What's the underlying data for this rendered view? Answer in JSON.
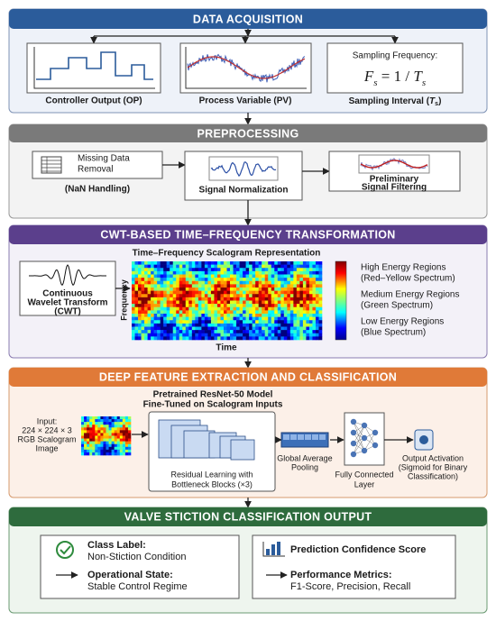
{
  "acquisition": {
    "title": "DATA ACQUISITION",
    "op_label": "Controller Output (OP)",
    "pv_label": "Process Variable (PV)",
    "sampling_frequency_label": "Sampling Frequency:",
    "formula": [
      "F",
      "s",
      " = 1 / ",
      "T",
      "s"
    ],
    "sampling_interval": [
      "Sampling Interval (",
      "T",
      "s",
      ")"
    ]
  },
  "preprocessing": {
    "title": "PREPROCESSING",
    "missing_data": [
      "Missing Data",
      "Removal"
    ],
    "nan_handling": "(NaN Handling)",
    "normalization": "Signal Normalization",
    "filtering": [
      "Preliminary",
      "Signal Filtering"
    ]
  },
  "cwt": {
    "title": "CWT-BASED TIME–FREQUENCY TRANSFORMATION",
    "wavelet": [
      "Continuous",
      "Wavelet Transform",
      "(CWT)"
    ],
    "scalogram_title": "Time–Frequency Scalogram Representation",
    "y_axis": "Frequency",
    "x_axis": "Time",
    "legend": [
      [
        "High Energy Regions",
        "(Red–Yellow Spectrum)"
      ],
      [
        "Medium Energy Regions",
        "(Green Spectrum)"
      ],
      [
        "Low Energy Regions",
        "(Blue Spectrum)"
      ]
    ]
  },
  "deep": {
    "title": "DEEP FEATURE EXTRACTION AND CLASSIFICATION",
    "input": [
      "Input:",
      "224 × 224 × 3",
      "RGB Scalogram",
      "Image"
    ],
    "model": [
      "Pretrained ResNet-50 Model",
      "Fine-Tuned on Scalogram Inputs"
    ],
    "residual": [
      "Residual Learning with",
      "Bottleneck Blocks (×3)"
    ],
    "pooling": [
      "Global Average",
      "Pooling"
    ],
    "fully_connected": [
      "Fully Connected",
      "Layer"
    ],
    "output": [
      "Output Activation",
      "(Sigmoid for Binary",
      "Classification)"
    ]
  },
  "output": {
    "title": "VALVE STICTION CLASSIFICATION OUTPUT",
    "class_label": "Class Label:",
    "class_value": "Non-Stiction Condition",
    "state_label": "Operational State:",
    "state_value": "Stable Control Regime",
    "confidence": "Prediction Confidence Score",
    "metrics_label": "Performance Metrics:",
    "metrics_value": "F1-Score, Precision, Recall"
  }
}
